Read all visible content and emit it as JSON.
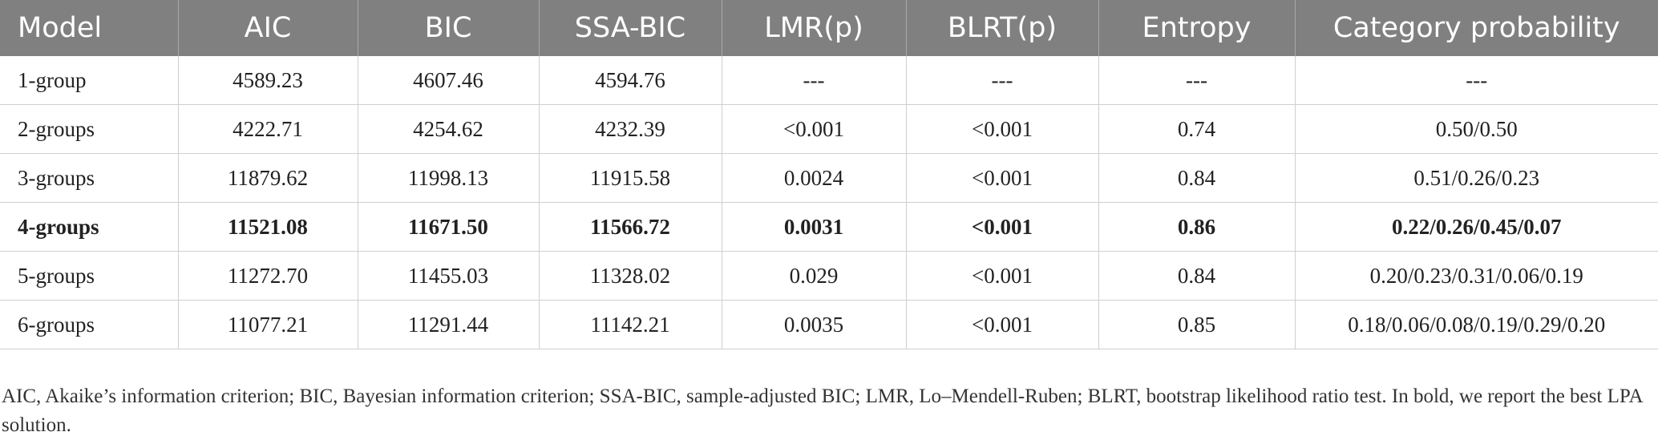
{
  "table": {
    "headers": [
      "Model",
      "AIC",
      "BIC",
      "SSA-BIC",
      "LMR(p)",
      "BLRT(p)",
      "Entropy",
      "Category probability"
    ],
    "rows": [
      [
        "1-group",
        "4589.23",
        "4607.46",
        "4594.76",
        "---",
        "---",
        "---",
        "---"
      ],
      [
        "2-groups",
        "4222.71",
        "4254.62",
        "4232.39",
        "<0.001",
        "<0.001",
        "0.74",
        "0.50/0.50"
      ],
      [
        "3-groups",
        "11879.62",
        "11998.13",
        "11915.58",
        "0.0024",
        "<0.001",
        "0.84",
        "0.51/0.26/0.23"
      ],
      [
        "4-groups",
        "11521.08",
        "11671.50",
        "11566.72",
        "0.0031",
        "<0.001",
        "0.86",
        "0.22/0.26/0.45/0.07"
      ],
      [
        "5-groups",
        "11272.70",
        "11455.03",
        "11328.02",
        "0.029",
        "<0.001",
        "0.84",
        "0.20/0.23/0.31/0.06/0.19"
      ],
      [
        "6-groups",
        "11077.21",
        "11291.44",
        "11142.21",
        "0.0035",
        "<0.001",
        "0.85",
        "0.18/0.06/0.08/0.19/0.29/0.20"
      ]
    ]
  },
  "note": "AIC, Akaike’s information criterion; BIC, Bayesian information criterion; SSA-BIC, sample-adjusted BIC; LMR, Lo–Mendell-Ruben; BLRT, bootstrap likelihood ratio test. In bold, we report the best LPA solution."
}
